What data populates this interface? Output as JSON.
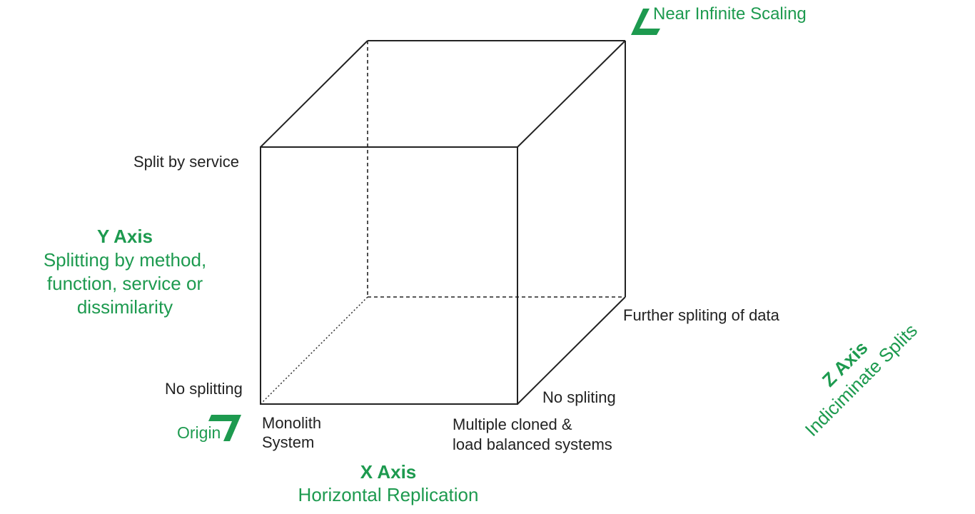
{
  "colors": {
    "line": "#222222",
    "accent": "#1d9a4f"
  },
  "top_right": {
    "icon": "corner-arrow-icon",
    "label": "Near Infinite Scaling"
  },
  "y_axis": {
    "end_label": "Split by service",
    "start_label": "No splitting",
    "title": "Y Axis",
    "description_lines": [
      "Splitting by method,",
      "function, service or",
      "dissimilarity"
    ]
  },
  "x_axis": {
    "start_label_lines": [
      "Monolith",
      "System"
    ],
    "end_label_lines": [
      "Multiple cloned &",
      "load balanced systems"
    ],
    "title": "X Axis",
    "description": "Horizontal Replication"
  },
  "z_axis": {
    "start_label": "No spliting",
    "end_label": "Further spliting of data",
    "title": "Z Axis",
    "description": "Indiciminate Splits"
  },
  "origin": {
    "icon": "corner-arrow-icon",
    "label": "Origin"
  }
}
